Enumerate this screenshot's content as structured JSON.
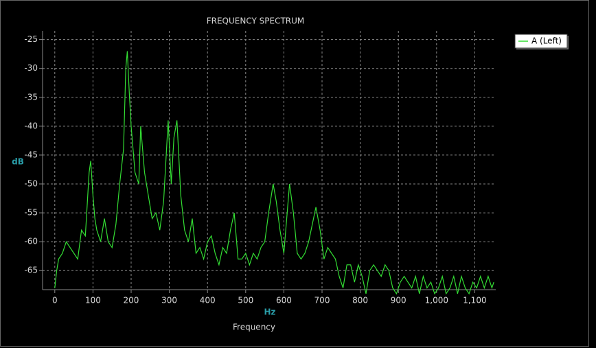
{
  "chart_data": {
    "type": "line",
    "title": "FREQUENCY SPECTRUM",
    "x_label": "Hz",
    "x_sublabel": "Frequency",
    "y_label": "dB",
    "xlim": [
      -32,
      1155
    ],
    "ylim": [
      -68.3,
      -23.5
    ],
    "xticks": [
      0,
      100,
      200,
      300,
      400,
      500,
      600,
      700,
      800,
      900,
      {
        "value": 1000,
        "label": "1,000"
      },
      {
        "value": 1100,
        "label": "1,100"
      }
    ],
    "yticks": [
      -65,
      -60,
      -55,
      -50,
      -45,
      -40,
      -35,
      -30,
      -25
    ],
    "grid": true,
    "legend": "top-right",
    "x": [
      0,
      5,
      10,
      20,
      30,
      40,
      50,
      60,
      70,
      80,
      90,
      94,
      100,
      105,
      110,
      120,
      130,
      140,
      150,
      160,
      170,
      180,
      186,
      190,
      195,
      200,
      210,
      220,
      225,
      235,
      245,
      255,
      265,
      275,
      285,
      297,
      305,
      312,
      320,
      330,
      340,
      350,
      360,
      370,
      380,
      390,
      400,
      410,
      420,
      430,
      440,
      450,
      460,
      470,
      480,
      490,
      500,
      510,
      520,
      530,
      540,
      550,
      560,
      572,
      580,
      590,
      600,
      615,
      625,
      635,
      645,
      655,
      665,
      684,
      695,
      705,
      715,
      725,
      735,
      745,
      755,
      765,
      775,
      785,
      795,
      805,
      815,
      825,
      835,
      845,
      855,
      865,
      875,
      885,
      895,
      905,
      915,
      925,
      935,
      945,
      955,
      965,
      975,
      985,
      995,
      1005,
      1015,
      1025,
      1035,
      1045,
      1055,
      1065,
      1075,
      1085,
      1095,
      1105,
      1115,
      1125,
      1135,
      1145,
      1150
    ],
    "series": [
      {
        "name": "A (Left)",
        "color": "#33dd33",
        "values": [
          -68,
          -65,
          -63,
          -62,
          -60,
          -61,
          -62,
          -63,
          -58,
          -59,
          -48,
          -46,
          -52,
          -56,
          -58,
          -60,
          -56,
          -60,
          -61,
          -57,
          -50,
          -44,
          -30,
          -27,
          -34,
          -40,
          -48,
          -50,
          -40,
          -48,
          -52,
          -56,
          -55,
          -58,
          -53,
          -39,
          -50,
          -42,
          -39,
          -52,
          -58,
          -60,
          -56,
          -62,
          -61,
          -63,
          -60,
          -59,
          -62,
          -64,
          -61,
          -62,
          -58,
          -55,
          -63,
          -63,
          -62,
          -64,
          -62,
          -63,
          -61,
          -60,
          -55,
          -50,
          -53,
          -58,
          -62,
          -50,
          -55,
          -62,
          -63,
          -62,
          -60,
          -54,
          -58,
          -63,
          -61,
          -62,
          -63,
          -66,
          -68,
          -64,
          -64,
          -67,
          -64,
          -66,
          -69,
          -65,
          -64,
          -65,
          -66,
          -64,
          -65,
          -68,
          -69,
          -67,
          -66,
          -67,
          -68,
          -66,
          -69,
          -66,
          -68,
          -67,
          -69,
          -68,
          -66,
          -69,
          -68,
          -66,
          -69,
          -66,
          -68,
          -69,
          -67,
          -68,
          -66,
          -68,
          -66,
          -68,
          -67
        ]
      }
    ]
  }
}
